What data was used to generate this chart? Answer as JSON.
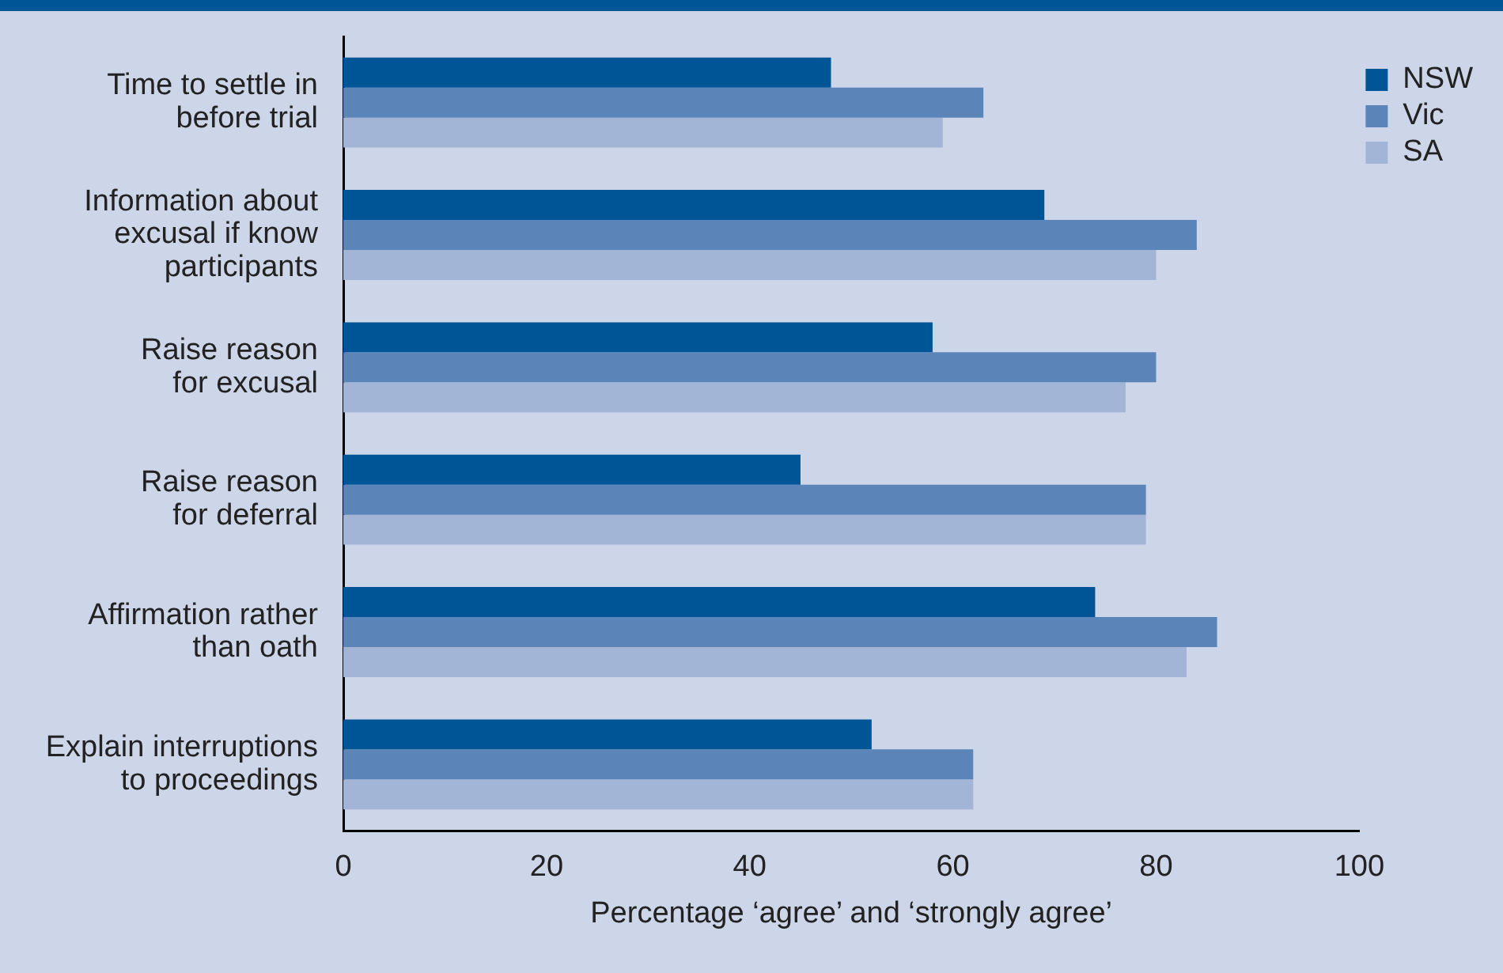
{
  "chart_data": {
    "type": "bar",
    "orientation": "horizontal",
    "categories": [
      "Time to settle in\nbefore trial",
      "Information about\nexcusal if know\nparticipants",
      "Raise reason\nfor excusal",
      "Raise reason\nfor deferral",
      "Affirmation rather\nthan oath",
      "Explain interruptions\nto proceedings"
    ],
    "series": [
      {
        "name": "NSW",
        "color": "#005597",
        "values": [
          48,
          69,
          58,
          45,
          74,
          52
        ]
      },
      {
        "name": "Vic",
        "color": "#5b84b8",
        "values": [
          63,
          84,
          80,
          79,
          86,
          62
        ]
      },
      {
        "name": "SA",
        "color": "#a2b5d7",
        "values": [
          59,
          80,
          77,
          79,
          83,
          62
        ]
      }
    ],
    "xlim": [
      0,
      100
    ],
    "xticks": [
      0,
      20,
      40,
      60,
      80,
      100
    ],
    "xlabel": "Percentage ‘agree’ and ‘strongly agree’",
    "legend": "top right",
    "grid": false
  }
}
